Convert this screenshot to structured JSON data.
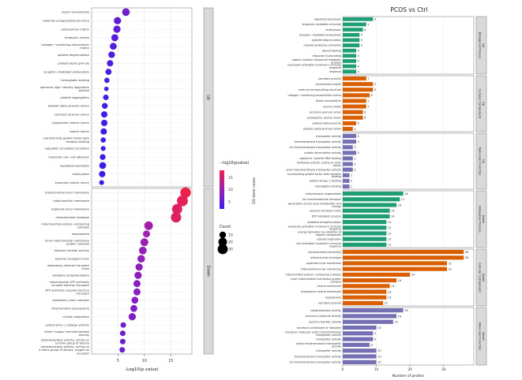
{
  "chart_data": [
    {
      "type": "scatter",
      "subtype": "dotplot",
      "title": "",
      "xlabel": "-Log10(p.value)",
      "ylabel": "",
      "xlim": [
        0,
        19
      ],
      "xticks": [
        5,
        10,
        15
      ],
      "grid": true,
      "facets": [
        {
          "name": "Up",
          "terms": [
            {
              "label": "blood microparticle",
              "x": 6.5,
              "count": 15
            },
            {
              "label": "external encapsulating structure",
              "x": 4.9,
              "count": 13
            },
            {
              "label": "extracellular matrix",
              "x": 4.8,
              "count": 13
            },
            {
              "label": "endocytic vesicle",
              "x": 4.4,
              "count": 12
            },
            {
              "label": "collagen−containing extracellular matrix",
              "x": 4.1,
              "count": 11
            },
            {
              "label": "platelet degranulation",
              "x": 3.8,
              "count": 10
            },
            {
              "label": "platelet alpha granule",
              "x": 3.5,
              "count": 9
            },
            {
              "label": "receptor−mediated endocytosis",
              "x": 3.2,
              "count": 8
            },
            {
              "label": "hemoglobin binding",
              "x": 2.9,
              "count": 5
            },
            {
              "label": "spherical high−density lipoprotein particle",
              "x": 2.8,
              "count": 3
            },
            {
              "label": "platelet aggregation",
              "x": 2.7,
              "count": 6
            },
            {
              "label": "platelet alpha granule lumen",
              "x": 2.5,
              "count": 7
            },
            {
              "label": "secretory granule lumen",
              "x": 2.4,
              "count": 9
            },
            {
              "label": "cytoplasmic vesicle lumen",
              "x": 2.4,
              "count": 9
            },
            {
              "label": "vesicle lumen",
              "x": 2.3,
              "count": 9
            },
            {
              "label": "transforming growth factor beta receptor binding",
              "x": 2.2,
              "count": 5
            },
            {
              "label": "regulation of platelet activation",
              "x": 2.2,
              "count": 4
            },
            {
              "label": "hemolytic cell−cell adhesion",
              "x": 2.1,
              "count": 7
            },
            {
              "label": "regulated exocytosis",
              "x": 2.1,
              "count": 11
            },
            {
              "label": "endocytosis",
              "x": 2.0,
              "count": 9
            },
            {
              "label": "endocytic vesicle lumen",
              "x": 1.9,
              "count": 4
            }
          ]
        },
        {
          "name": "Down",
          "terms": [
            {
              "label": "mitochondrial inner membrane",
              "x": 17.8,
              "count": 33
            },
            {
              "label": "mitochondrial membrane",
              "x": 17.2,
              "count": 36
            },
            {
              "label": "organelle inner membrane",
              "x": 16.2,
              "count": 31
            },
            {
              "label": "mitochondrial envelope",
              "x": 16.0,
              "count": 31
            },
            {
              "label": "mitochondrial protein−containing complex",
              "x": 10.8,
              "count": 20
            },
            {
              "label": "respirasome",
              "x": 10.4,
              "count": 12
            },
            {
              "label": "inner mitochondrial membrane protein complex",
              "x": 10.0,
              "count": 16
            },
            {
              "label": "electron transfer activity",
              "x": 9.7,
              "count": 15
            },
            {
              "label": "electron transport chain",
              "x": 9.4,
              "count": 14
            },
            {
              "label": "respiratory electron transport chain",
              "x": 9.0,
              "count": 13
            },
            {
              "label": "oxidative phosphorylation",
              "x": 8.8,
              "count": 13
            },
            {
              "label": "mitochondrial ATP synthesis coupled electron transport",
              "x": 8.6,
              "count": 12
            },
            {
              "label": "ATP synthesis coupled electron transport",
              "x": 8.6,
              "count": 12
            },
            {
              "label": "respiratory chain complex",
              "x": 8.2,
              "count": 11
            },
            {
              "label": "mitochondrial respirasome",
              "x": 8.0,
              "count": 11
            },
            {
              "label": "cellular respiration",
              "x": 7.7,
              "count": 13
            },
            {
              "label": "cytochrome−c oxidase activity",
              "x": 6.0,
              "count": 6
            },
            {
              "label": "heme−copper terminal oxidase activity",
              "x": 5.9,
              "count": 6
            },
            {
              "label": "oxidoreductase activity, acting on a heme group of donors",
              "x": 5.9,
              "count": 6
            },
            {
              "label": "oxidoreductase activity, acting on a heme group of donors, oxygen as acceptor",
              "x": 5.8,
              "count": 6
            }
          ]
        }
      ],
      "color_legend": {
        "title": "−log10(pvalue)",
        "ticks": [
          5,
          10,
          15
        ],
        "low_color": "#3a1eea",
        "high_color": "#f0214a",
        "range": [
          2,
          18
        ]
      },
      "size_legend": {
        "title": "Count",
        "values": [
          10,
          20,
          30
        ]
      }
    },
    {
      "type": "bar",
      "orientation": "horizontal",
      "title": "PCOS vs Ctrl",
      "xlabel": "Number of protein",
      "ylabel": "GO term name",
      "xlim": [
        0,
        39
      ],
      "xticks": [
        0,
        10,
        20,
        30
      ],
      "grid": true,
      "facets": [
        {
          "name": "Up Biological Process",
          "color": "#1f9e76",
          "bars": [
            {
              "label": "regulated exocytosis",
              "value": 9
            },
            {
              "label": "leukocyte mediated immunity",
              "value": 7
            },
            {
              "label": "endocytosis",
              "value": 6
            },
            {
              "label": "receptor−mediated endocytosis",
              "value": 5
            },
            {
              "label": "platelet degranulation",
              "value": 5
            },
            {
              "label": "myeloid leukocyte activation",
              "value": 5
            },
            {
              "label": "wound healing",
              "value": 4
            },
            {
              "label": "response to wounding",
              "value": 4
            },
            {
              "label": "organic hydroxy compound metabolic process",
              "value": 4
            },
            {
              "label": "neutrophil activation involved in immune response",
              "value": 4
            },
            {
              "label": "response",
              "value": 4
            }
          ]
        },
        {
          "name": "Up Cellular Component",
          "color": "#d95f02",
          "bars": [
            {
              "label": "secretory granule",
              "value": 7
            },
            {
              "label": "extracellular matrix",
              "value": 9
            },
            {
              "label": "external encapsulating structure",
              "value": 9
            },
            {
              "label": "collagen−containing extracellular matrix",
              "value": 8
            },
            {
              "label": "blood microparticle",
              "value": 7
            },
            {
              "label": "vesicle lumen",
              "value": 7
            },
            {
              "label": "secretory granule lumen",
              "value": 6
            },
            {
              "label": "cytoplasmic vesicle lumen",
              "value": 6
            },
            {
              "label": "platelet alpha granule",
              "value": 4
            },
            {
              "label": "platelet alpha granule lumen",
              "value": 3
            }
          ]
        },
        {
          "name": "Up Molecular Function",
          "color": "#7570b3",
          "bars": [
            {
              "label": "transporter activity",
              "value": 4
            },
            {
              "label": "transmembrane transporter activity",
              "value": 4
            },
            {
              "label": "ion transmembrane transporter activity",
              "value": 3
            },
            {
              "label": "protein dimerization activity",
              "value": 4
            },
            {
              "label": "sequence−specific DNA binding",
              "value": 3
            },
            {
              "label": "hydrolase activity, acting on ester bonds",
              "value": 3
            },
            {
              "label": "anion transmembrane transporter activity",
              "value": 3
            },
            {
              "label": "transforming growth factor beta receptor binding",
              "value": 2
            },
            {
              "label": "protein kinase C binding",
              "value": 2
            },
            {
              "label": "hemoglobin binding",
              "value": 2
            }
          ]
        },
        {
          "name": "Down Biological Process",
          "color": "#1f9e76",
          "bars": [
            {
              "label": "mitochondrion organization",
              "value": 18
            },
            {
              "label": "ion transmembrane transport",
              "value": 17
            },
            {
              "label": "generation of precursor metabolites and energy",
              "value": 16
            },
            {
              "label": "electron transport chain",
              "value": 14
            },
            {
              "label": "ATP metabolic process",
              "value": 14
            },
            {
              "label": "oxidative phosphorylation",
              "value": 13
            },
            {
              "label": "leukocyte activation involved in immune response",
              "value": 13
            },
            {
              "label": "energy derivation by oxidation of organic compounds",
              "value": 13
            },
            {
              "label": "cellular respiration",
              "value": 13
            },
            {
              "label": "cell activation involved in immune response",
              "value": 13
            }
          ]
        },
        {
          "name": "Down Cellular Component",
          "color": "#d95f02",
          "bars": [
            {
              "label": "mitochondrial membrane",
              "value": 36
            },
            {
              "label": "mitochondrial envelope",
              "value": 36
            },
            {
              "label": "organelle inner membrane",
              "value": 31
            },
            {
              "label": "mitochondrial inner membrane",
              "value": 31
            },
            {
              "label": "mitochondrial protein−containing complex",
              "value": 20
            },
            {
              "label": "inner mitochondrial membrane protein complex",
              "value": 16
            },
            {
              "label": "vesicle membrane",
              "value": 14
            },
            {
              "label": "cytoplasmic vesicle membrane",
              "value": 13
            },
            {
              "label": "respirasome",
              "value": 13
            },
            {
              "label": "secretory granule",
              "value": 12
            }
          ]
        },
        {
          "name": "Down Molecular Function",
          "color": "#7570b3",
          "bars": [
            {
              "label": "oxidoreductase activity",
              "value": 18
            },
            {
              "label": "structural molecule activity",
              "value": 16
            },
            {
              "label": "electron transfer activity",
              "value": 15
            },
            {
              "label": "structural constituent of ribosome",
              "value": 10
            },
            {
              "label": "inorganic molecular entity transmembrane transporter activity",
              "value": 9
            },
            {
              "label": "transporter activity",
              "value": 9
            },
            {
              "label": "cation transmembrane transporter activity",
              "value": 8
            },
            {
              "label": "transporter activity",
              "value": 10
            },
            {
              "label": "transmembrane transporter activity",
              "value": 10
            },
            {
              "label": "ion transmembrane transporter activity",
              "value": 10
            }
          ]
        }
      ]
    }
  ]
}
